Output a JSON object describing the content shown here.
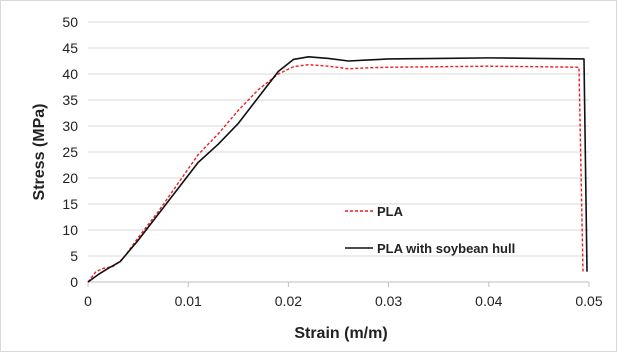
{
  "chart_data": {
    "type": "line",
    "title": "",
    "xlabel": "Strain  (m/m)",
    "ylabel": "Stress (MPa)",
    "xlim": [
      0,
      0.05
    ],
    "ylim": [
      0,
      50
    ],
    "x_ticks": [
      "0",
      "0.01",
      "0.02",
      "0.03",
      "0.04",
      "0.05"
    ],
    "y_ticks": [
      "0",
      "5",
      "10",
      "15",
      "20",
      "25",
      "30",
      "35",
      "40",
      "45",
      "50"
    ],
    "grid": "horizontal",
    "legend_position": "bottom-right",
    "series": [
      {
        "name": "PLA",
        "color": "#ee1c1c",
        "style": "dashed",
        "points": [
          [
            0,
            0
          ],
          [
            0.0008,
            2.0
          ],
          [
            0.0015,
            2.6
          ],
          [
            0.0025,
            3.0
          ],
          [
            0.0035,
            4.5
          ],
          [
            0.005,
            8.5
          ],
          [
            0.007,
            13.5
          ],
          [
            0.009,
            19.0
          ],
          [
            0.011,
            24.5
          ],
          [
            0.013,
            28.5
          ],
          [
            0.015,
            33.0
          ],
          [
            0.017,
            37.0
          ],
          [
            0.019,
            40.0
          ],
          [
            0.0205,
            41.4
          ],
          [
            0.022,
            41.8
          ],
          [
            0.024,
            41.5
          ],
          [
            0.026,
            41.0
          ],
          [
            0.028,
            41.2
          ],
          [
            0.03,
            41.3
          ],
          [
            0.035,
            41.4
          ],
          [
            0.04,
            41.5
          ],
          [
            0.045,
            41.4
          ],
          [
            0.049,
            41.3
          ],
          [
            0.0494,
            2.0
          ]
        ]
      },
      {
        "name": "PLA with soybean hull",
        "color": "#111111",
        "style": "solid",
        "points": [
          [
            0,
            0
          ],
          [
            0.001,
            1.4
          ],
          [
            0.002,
            2.6
          ],
          [
            0.0032,
            3.9
          ],
          [
            0.005,
            8.0
          ],
          [
            0.007,
            13.0
          ],
          [
            0.009,
            18.0
          ],
          [
            0.011,
            23.0
          ],
          [
            0.013,
            26.5
          ],
          [
            0.015,
            30.5
          ],
          [
            0.017,
            35.5
          ],
          [
            0.019,
            40.5
          ],
          [
            0.0205,
            42.8
          ],
          [
            0.022,
            43.3
          ],
          [
            0.024,
            43.0
          ],
          [
            0.026,
            42.5
          ],
          [
            0.028,
            42.7
          ],
          [
            0.03,
            42.9
          ],
          [
            0.035,
            43.0
          ],
          [
            0.04,
            43.1
          ],
          [
            0.045,
            43.0
          ],
          [
            0.0495,
            42.9
          ],
          [
            0.0498,
            2.0
          ]
        ]
      }
    ]
  }
}
